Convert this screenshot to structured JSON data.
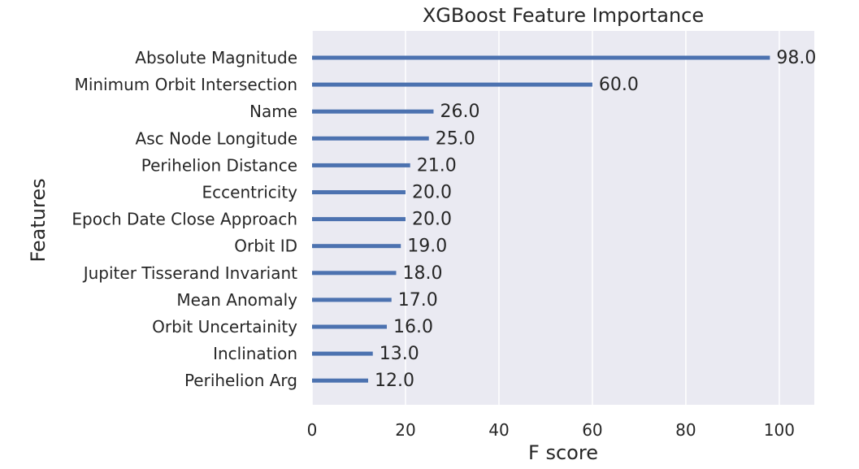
{
  "chart_data": {
    "type": "bar",
    "orientation": "horizontal",
    "title": "XGBoost Feature Importance",
    "xlabel": "F score",
    "ylabel": "Features",
    "categories": [
      "Absolute Magnitude",
      "Minimum Orbit Intersection",
      "Name",
      "Asc Node Longitude",
      "Perihelion Distance",
      "Eccentricity",
      "Epoch Date Close Approach",
      "Orbit ID",
      "Jupiter Tisserand Invariant",
      "Mean Anomaly",
      "Orbit Uncertainity",
      "Inclination",
      "Perihelion Arg"
    ],
    "values": [
      98,
      60,
      26,
      25,
      21,
      20,
      20,
      19,
      18,
      17,
      16,
      13,
      12
    ],
    "value_labels": [
      "98.0",
      "60.0",
      "26.0",
      "25.0",
      "21.0",
      "20.0",
      "20.0",
      "19.0",
      "18.0",
      "17.0",
      "16.0",
      "13.0",
      "12.0"
    ],
    "xticks": [
      0,
      20,
      40,
      60,
      80,
      100
    ],
    "xlim": [
      0,
      107.5
    ],
    "grid": true,
    "colors": {
      "bar": "#4c72b0",
      "background": "#eaeaf2",
      "grid": "#ffffff",
      "text": "#262626"
    }
  }
}
